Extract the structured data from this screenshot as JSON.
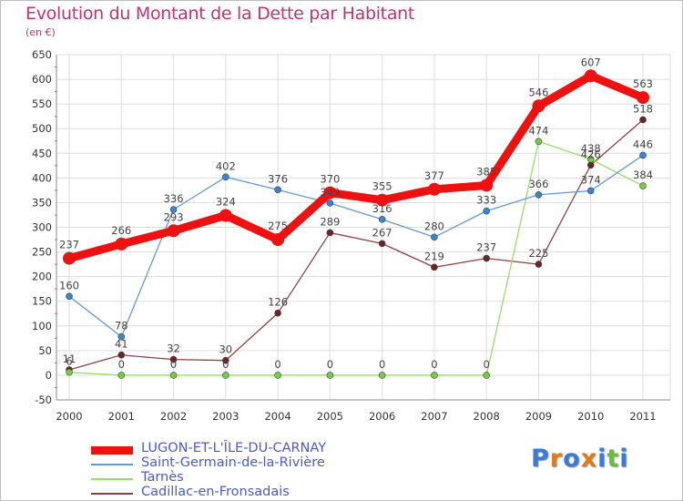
{
  "title": "Evolution du Montant de la Dette par Habitant",
  "subtitle": "(en €)",
  "logo": {
    "letters": [
      "P",
      "r",
      "o",
      "x",
      "i",
      "t",
      "i"
    ],
    "colors": [
      "#3a7bd5",
      "#e07b1a",
      "#3a7bd5",
      "#e07b1a",
      "#3a7bd5",
      "#6bbf3a",
      "#3a7bd5"
    ]
  },
  "chart_data": {
    "type": "line",
    "categories": [
      "2000",
      "2001",
      "2002",
      "2003",
      "2004",
      "2005",
      "2006",
      "2007",
      "2008",
      "2009",
      "2010",
      "2011"
    ],
    "ylim": [
      -50,
      650
    ],
    "yticks": [
      -50,
      0,
      50,
      100,
      150,
      200,
      250,
      300,
      350,
      400,
      450,
      500,
      550,
      600,
      650
    ],
    "grid": true,
    "legend_position": "bottom-left",
    "series": [
      {
        "name": "LUGON-ET-L'ÎLE-DU-CARNAY",
        "color": "#ee1111",
        "width": 9,
        "marker": 7,
        "values": [
          237,
          266,
          293,
          324,
          275,
          370,
          355,
          377,
          385,
          546,
          607,
          563
        ],
        "labels": [
          "237",
          "266",
          "293",
          "324",
          "275",
          "370",
          "355",
          "377",
          "385",
          "546",
          "607",
          "563"
        ]
      },
      {
        "name": "Saint-Germain-de-la-Rivière",
        "color": "#6699cc",
        "width": 1.3,
        "marker": 3.5,
        "markerFill": "#3a85d0",
        "values": [
          160,
          78,
          336,
          402,
          376,
          349,
          316,
          280,
          333,
          366,
          374,
          446
        ],
        "labels": [
          "160",
          "78",
          "336",
          "402",
          "376",
          "349",
          "316",
          "280",
          "333",
          "366",
          "374",
          "446"
        ]
      },
      {
        "name": "Tarnès",
        "color": "#99dd66",
        "width": 1.3,
        "marker": 3.5,
        "markerFill": "#77cc44",
        "values": [
          6,
          0,
          0,
          0,
          0,
          0,
          0,
          0,
          0,
          474,
          438,
          384
        ],
        "labels": [
          "6",
          "0",
          "0",
          "0",
          "0",
          "0",
          "0",
          "0",
          "0",
          "474",
          "438",
          "384"
        ]
      },
      {
        "name": "Cadillac-en-Fronsadais",
        "color": "#884444",
        "width": 1.3,
        "marker": 3.5,
        "markerFill": "#6b2424",
        "values": [
          11,
          41,
          32,
          30,
          126,
          289,
          267,
          219,
          237,
          225,
          426,
          518
        ],
        "labels": [
          "11",
          "41",
          "32",
          "30",
          "126",
          "289",
          "267",
          "219",
          "237",
          "225",
          "426",
          "518"
        ]
      }
    ]
  }
}
